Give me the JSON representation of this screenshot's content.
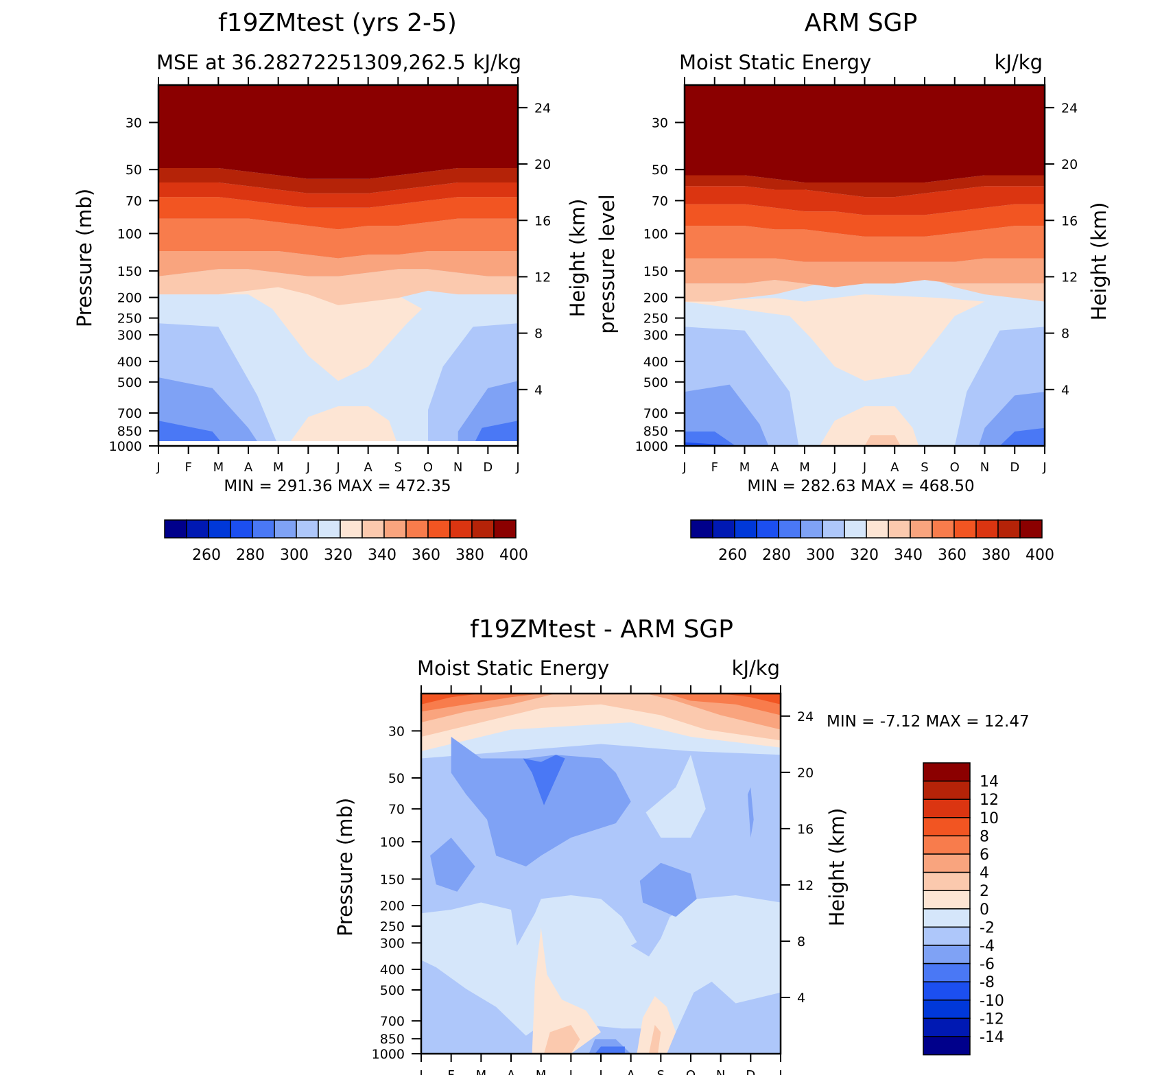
{
  "months": [
    "J",
    "F",
    "M",
    "A",
    "M",
    "J",
    "J",
    "A",
    "S",
    "O",
    "N",
    "D",
    "J"
  ],
  "pressure_ticks": [
    "30",
    "50",
    "70",
    "100",
    "150",
    "200",
    "250",
    "300",
    "400",
    "500",
    "700",
    "850",
    "1000"
  ],
  "height_ticks": [
    "24",
    "20",
    "16",
    "12",
    "8",
    "4"
  ],
  "colors": {
    "abs": [
      "#00008b",
      "#0019b3",
      "#0038d9",
      "#1c4ff0",
      "#4a78f5",
      "#7fa2f5",
      "#aec7fa",
      "#d5e6fa",
      "#fde5d4",
      "#fbc9ae",
      "#f9a47e",
      "#f87c4c",
      "#f25522",
      "#db3511",
      "#b52308",
      "#8b0000"
    ],
    "diff": [
      "#00008b",
      "#0019b3",
      "#0038d9",
      "#1c4ff0",
      "#4a78f5",
      "#7fa2f5",
      "#aec7fa",
      "#d5e6fa",
      "#fde5d4",
      "#fbc9ae",
      "#f9a47e",
      "#f87c4c",
      "#f25522",
      "#db3511",
      "#b52308",
      "#8b0000"
    ]
  },
  "panels": {
    "model": {
      "title": "f19ZMtest (yrs 2-5)",
      "left_label": "MSE at 36.28272251309,262.5",
      "right_label": "kJ/kg",
      "ylabel": "Pressure (mb)",
      "y2label": "Height (km)",
      "stats": "MIN =  291.36  MAX =  472.35",
      "colorbar_labels": [
        "260",
        "280",
        "300",
        "320",
        "340",
        "360",
        "380",
        "400"
      ]
    },
    "obs": {
      "title": "ARM SGP",
      "left_label": "Moist Static Energy",
      "right_label": "kJ/kg",
      "ylabel": "pressure level",
      "y2label": "Height (km)",
      "stats": "MIN =  282.63  MAX =  468.50",
      "colorbar_labels": [
        "260",
        "280",
        "300",
        "320",
        "340",
        "360",
        "380",
        "400"
      ]
    },
    "diff": {
      "title": "f19ZMtest - ARM SGP",
      "left_label": "Moist Static Energy",
      "right_label": "kJ/kg",
      "ylabel": "Pressure (mb)",
      "y2label": "Height (km)",
      "stats": "MIN =   -7.12  MAX =   12.47",
      "colorbar_labels": [
        "14",
        "12",
        "10",
        "8",
        "6",
        "4",
        "2",
        "0",
        "-2",
        "-4",
        "-6",
        "-8",
        "-10",
        "-12",
        "-14"
      ]
    }
  },
  "chart_data": [
    {
      "type": "heatmap",
      "title": "f19ZMtest (yrs 2-5)",
      "subtitle": "MSE at 36.28272251309,262.5",
      "units": "kJ/kg",
      "x": [
        "J",
        "F",
        "M",
        "A",
        "M",
        "J",
        "J",
        "A",
        "S",
        "O",
        "N",
        "D",
        "J"
      ],
      "ylabel": "Pressure (mb)",
      "y_ticks": [
        30,
        50,
        70,
        100,
        150,
        200,
        250,
        300,
        400,
        500,
        700,
        850,
        1000
      ],
      "y_log": true,
      "y_reversed": true,
      "y2label": "Height (km)",
      "y2_ticks": [
        24,
        20,
        16,
        12,
        8,
        4
      ],
      "contour_levels": [
        250,
        260,
        270,
        280,
        290,
        300,
        310,
        320,
        330,
        340,
        350,
        360,
        370,
        380,
        390,
        400
      ],
      "min": 291.36,
      "max": 472.35
    },
    {
      "type": "heatmap",
      "title": "ARM SGP",
      "subtitle": "Moist Static Energy",
      "units": "kJ/kg",
      "x": [
        "J",
        "F",
        "M",
        "A",
        "M",
        "J",
        "J",
        "A",
        "S",
        "O",
        "N",
        "D",
        "J"
      ],
      "ylabel": "pressure level",
      "y_ticks": [
        30,
        50,
        70,
        100,
        150,
        200,
        250,
        300,
        400,
        500,
        700,
        850,
        1000
      ],
      "y_log": true,
      "y_reversed": true,
      "y2label": "Height (km)",
      "y2_ticks": [
        24,
        20,
        16,
        12,
        8,
        4
      ],
      "contour_levels": [
        250,
        260,
        270,
        280,
        290,
        300,
        310,
        320,
        330,
        340,
        350,
        360,
        370,
        380,
        390,
        400
      ],
      "min": 282.63,
      "max": 468.5
    },
    {
      "type": "heatmap",
      "title": "f19ZMtest - ARM SGP",
      "subtitle": "Moist Static Energy",
      "units": "kJ/kg",
      "x": [
        "J",
        "F",
        "M",
        "A",
        "M",
        "J",
        "J",
        "A",
        "S",
        "O",
        "N",
        "D",
        "J"
      ],
      "ylabel": "Pressure (mb)",
      "y_ticks": [
        30,
        50,
        70,
        100,
        150,
        200,
        250,
        300,
        400,
        500,
        700,
        850,
        1000
      ],
      "y_log": true,
      "y_reversed": true,
      "y2label": "Height (km)",
      "y2_ticks": [
        24,
        20,
        16,
        12,
        8,
        4
      ],
      "contour_levels": [
        -14,
        -12,
        -10,
        -8,
        -6,
        -4,
        -2,
        0,
        2,
        4,
        6,
        8,
        10,
        12,
        14
      ],
      "min": -7.12,
      "max": 12.47
    }
  ]
}
